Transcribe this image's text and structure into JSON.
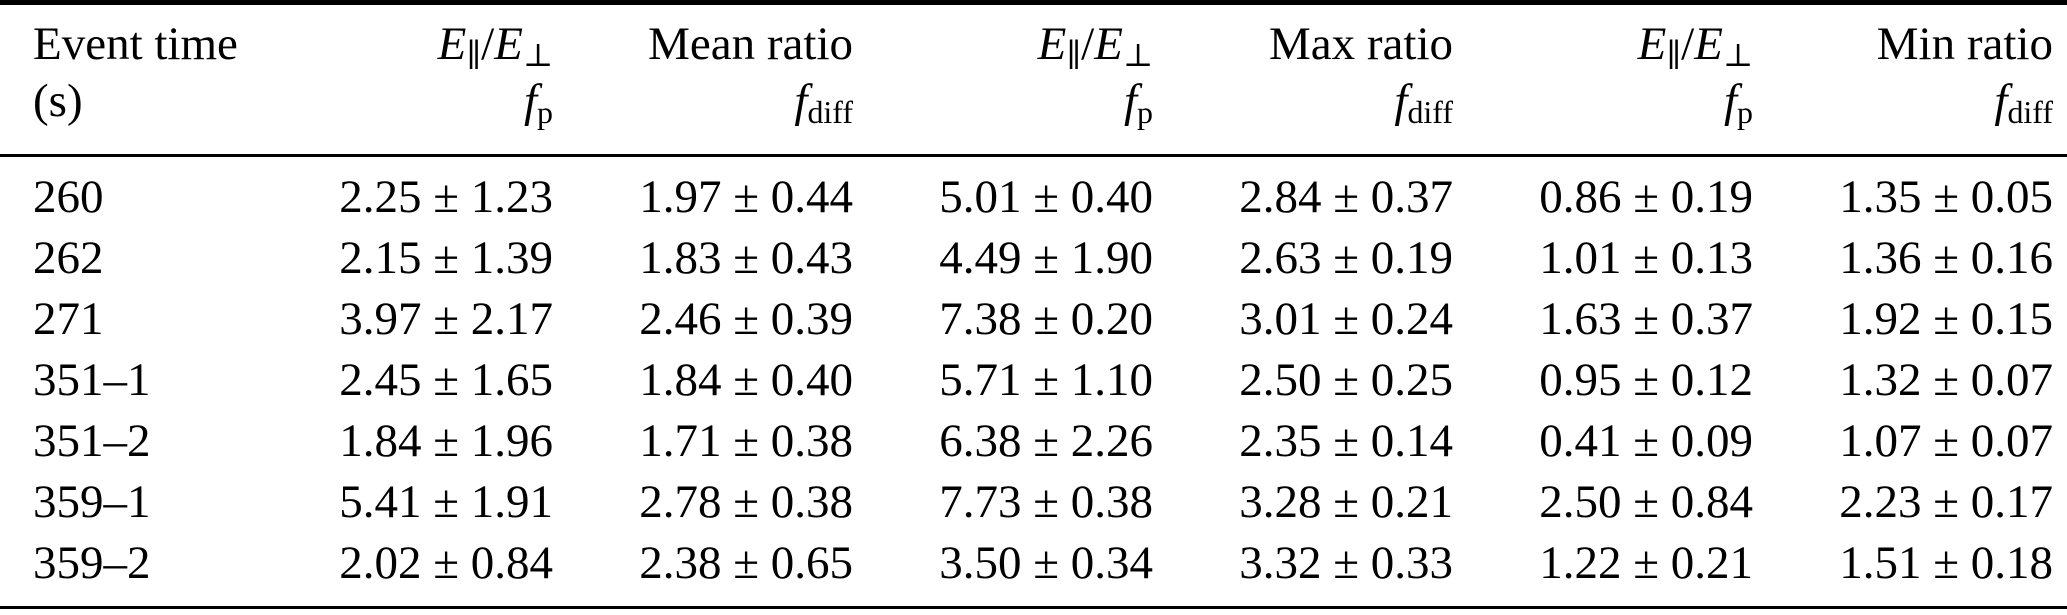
{
  "colors": {
    "background": "#ffffff",
    "text": "#000000",
    "rule": "#000000"
  },
  "table": {
    "columns": [
      {
        "line1": "Event time",
        "line2": "(s)"
      },
      {
        "line1": "E_{∥}/E_{⊥}",
        "line2": "f_{p}"
      },
      {
        "line1": "Mean ratio",
        "line2": "f_{diff}"
      },
      {
        "line1": "E_{∥}/E_{⊥}",
        "line2": "f_{p}"
      },
      {
        "line1": "Max ratio",
        "line2": "f_{diff}"
      },
      {
        "line1": "E_{∥}/E_{⊥}",
        "line2": "f_{p}"
      },
      {
        "line1": "Min ratio",
        "line2": "f_{diff}"
      }
    ],
    "rows": [
      [
        "260",
        "2.25 ± 1.23",
        "1.97 ± 0.44",
        "5.01 ± 0.40",
        "2.84 ± 0.37",
        "0.86 ± 0.19",
        "1.35 ± 0.05"
      ],
      [
        "262",
        "2.15 ± 1.39",
        "1.83 ± 0.43",
        "4.49 ± 1.90",
        "2.63 ± 0.19",
        "1.01 ± 0.13",
        "1.36 ± 0.16"
      ],
      [
        "271",
        "3.97 ± 2.17",
        "2.46 ± 0.39",
        "7.38 ± 0.20",
        "3.01 ± 0.24",
        "1.63 ± 0.37",
        "1.92 ± 0.15"
      ],
      [
        "351–1",
        "2.45 ± 1.65",
        "1.84 ± 0.40",
        "5.71 ± 1.10",
        "2.50 ± 0.25",
        "0.95 ± 0.12",
        "1.32 ± 0.07"
      ],
      [
        "351–2",
        "1.84 ± 1.96",
        "1.71 ± 0.38",
        "6.38 ± 2.26",
        "2.35 ± 0.14",
        "0.41 ± 0.09",
        "1.07 ± 0.07"
      ],
      [
        "359–1",
        "5.41 ± 1.91",
        "2.78 ± 0.38",
        "7.73 ± 0.38",
        "3.28 ± 0.21",
        "2.50 ± 0.84",
        "2.23 ± 0.17"
      ],
      [
        "359–2",
        "2.02 ± 0.84",
        "2.38 ± 0.65",
        "3.50 ± 0.34",
        "3.32 ± 0.33",
        "1.22 ± 0.21",
        "1.51 ± 0.18"
      ]
    ]
  }
}
